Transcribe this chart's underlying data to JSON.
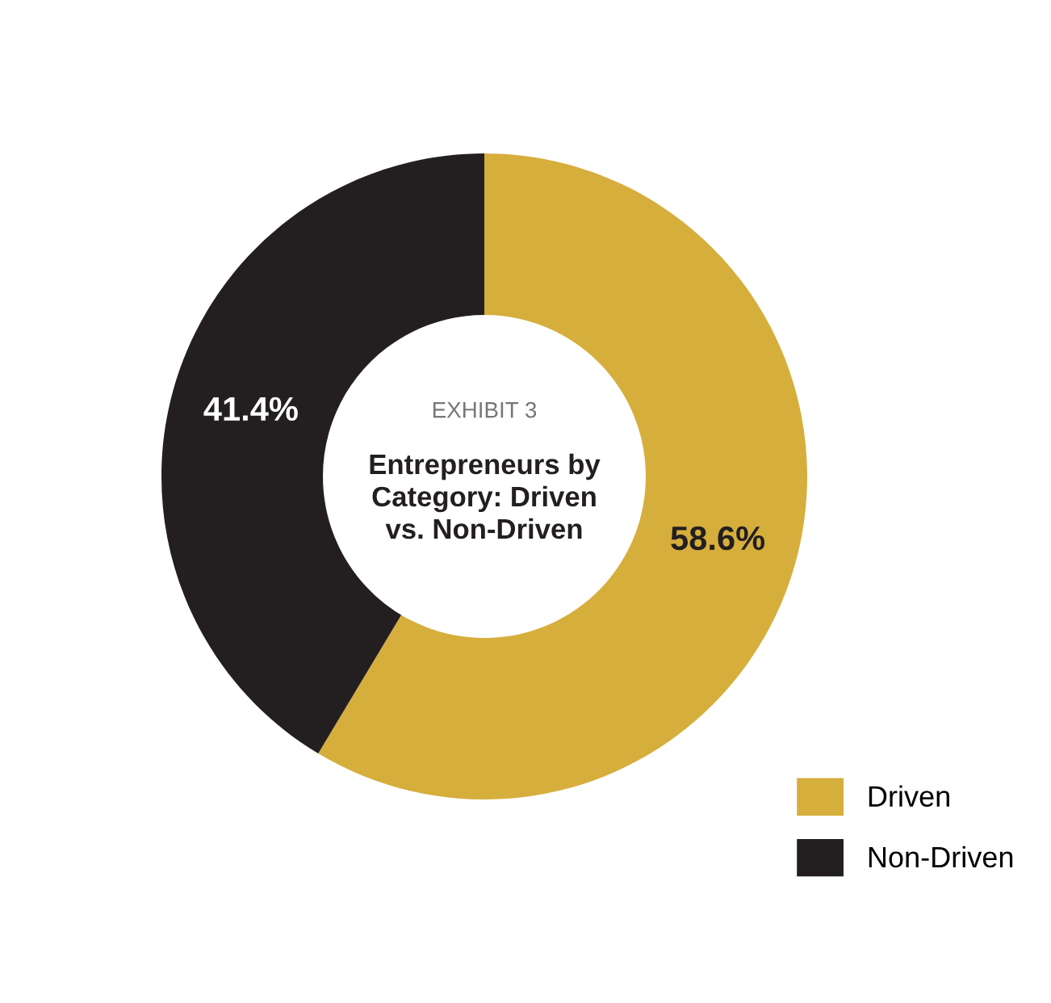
{
  "chart_data": {
    "type": "donut",
    "title": "Entrepreneurs by Category: Driven vs. Non-Driven",
    "subtitle": "EXHIBIT 3",
    "categories": [
      "Driven",
      "Non-Driven"
    ],
    "values": [
      58.6,
      41.4
    ],
    "colors": [
      "#d6ae3c",
      "#231f20"
    ],
    "value_labels": [
      "58.6%",
      "41.4%"
    ],
    "legend": "bottom right"
  }
}
